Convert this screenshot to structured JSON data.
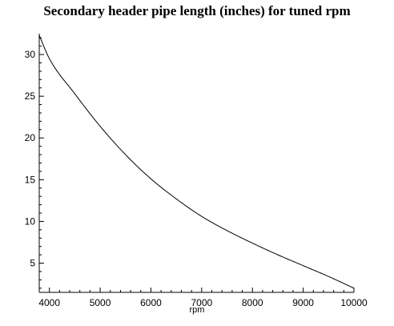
{
  "chart_data": {
    "type": "line",
    "title": "Secondary header pipe length (inches) for tuned rpm",
    "xlabel": "rpm",
    "ylabel": "",
    "xlim": [
      3800,
      10000
    ],
    "ylim": [
      1.5,
      32.5
    ],
    "grid": false,
    "x_ticks": [
      "4000",
      "5000",
      "6000",
      "7000",
      "8000",
      "9000",
      "10000"
    ],
    "y_ticks": [
      "5",
      "10",
      "15",
      "20",
      "25",
      "30"
    ],
    "series": [
      {
        "color": "#000000",
        "x": [
          3800,
          4000,
          4500,
          5000,
          5500,
          6000,
          6500,
          7000,
          7500,
          8000,
          8500,
          9000,
          9500,
          10000
        ],
        "y": [
          32.3,
          29.5,
          25.3,
          21.4,
          18.0,
          15.1,
          12.7,
          10.6,
          8.9,
          7.4,
          6.0,
          4.7,
          3.4,
          2.0
        ]
      }
    ]
  }
}
